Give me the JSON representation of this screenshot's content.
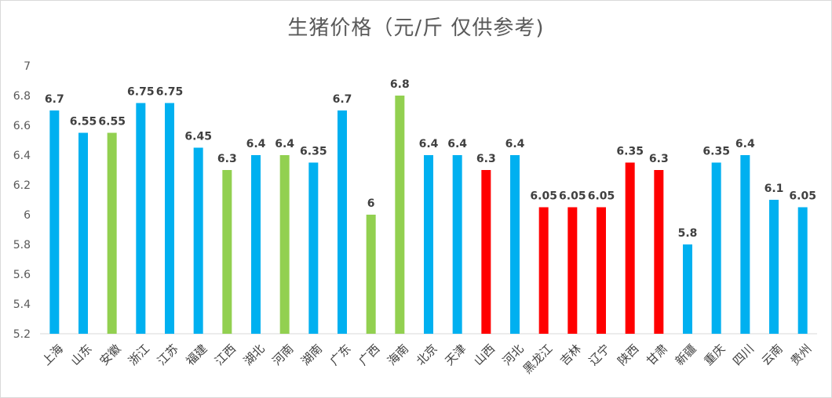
{
  "chart_data": {
    "type": "bar",
    "title": "生猪价格（元/斤 仅供参考)",
    "xlabel": "",
    "ylabel": "",
    "ylim": [
      5.2,
      7
    ],
    "yticks": [
      "5.2",
      "5.4",
      "5.6",
      "5.8",
      "6",
      "6.2",
      "6.4",
      "6.6",
      "6.8",
      "7"
    ],
    "grid": false,
    "legend": "none",
    "categories": [
      "上海",
      "山东",
      "安徽",
      "浙江",
      "江苏",
      "福建",
      "江西",
      "湖北",
      "河南",
      "湖南",
      "广东",
      "广西",
      "海南",
      "北京",
      "天津",
      "山西",
      "河北",
      "黑龙江",
      "吉林",
      "辽宁",
      "陕西",
      "甘肃",
      "新疆",
      "重庆",
      "四川",
      "云南",
      "贵州"
    ],
    "values": [
      6.7,
      6.55,
      6.55,
      6.75,
      6.75,
      6.45,
      6.3,
      6.4,
      6.4,
      6.35,
      6.7,
      6,
      6.8,
      6.4,
      6.4,
      6.3,
      6.4,
      6.05,
      6.05,
      6.05,
      6.35,
      6.3,
      5.8,
      6.35,
      6.4,
      6.1,
      6.05
    ],
    "data_labels": [
      "6.7",
      "6.55",
      "6.55",
      "6.75",
      "6.75",
      "6.45",
      "6.3",
      "6.4",
      "6.4",
      "6.35",
      "6.7",
      "6",
      "6.8",
      "6.4",
      "6.4",
      "6.3",
      "6.4",
      "6.05",
      "6.05",
      "6.05",
      "6.35",
      "6.3",
      "5.8",
      "6.35",
      "6.4",
      "6.1",
      "6.05"
    ],
    "bar_colors": [
      "#00B0F0",
      "#00B0F0",
      "#92D050",
      "#00B0F0",
      "#00B0F0",
      "#00B0F0",
      "#92D050",
      "#00B0F0",
      "#92D050",
      "#00B0F0",
      "#00B0F0",
      "#92D050",
      "#92D050",
      "#00B0F0",
      "#00B0F0",
      "#FF0000",
      "#00B0F0",
      "#FF0000",
      "#FF0000",
      "#FF0000",
      "#FF0000",
      "#FF0000",
      "#00B0F0",
      "#00B0F0",
      "#00B0F0",
      "#00B0F0",
      "#00B0F0"
    ]
  }
}
